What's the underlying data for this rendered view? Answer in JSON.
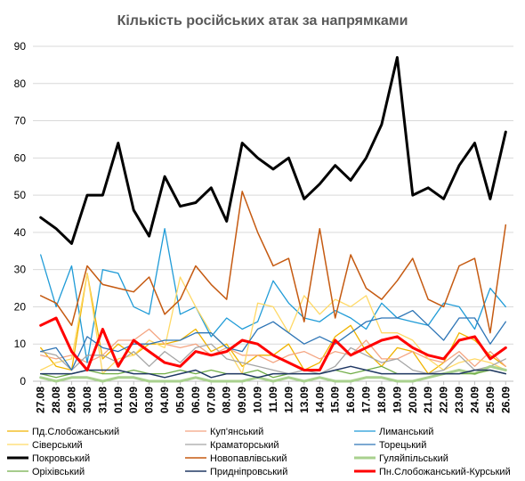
{
  "chart_data": {
    "type": "line",
    "title": "Кількість російських атак за напрямками",
    "xlabel": "",
    "ylabel": "",
    "ylim": [
      0,
      90
    ],
    "yticks": [
      0,
      10,
      20,
      30,
      40,
      50,
      60,
      70,
      80,
      90
    ],
    "grid": "horizontal",
    "legend_position": "bottom",
    "categories": [
      "27.08",
      "28.08",
      "29.08",
      "30.08",
      "31.08",
      "01.09",
      "02.09",
      "03.09",
      "04.09",
      "05.09",
      "06.09",
      "07.09",
      "08.09",
      "09.09",
      "10.09",
      "11.09",
      "12.09",
      "13.09",
      "14.09",
      "15.09",
      "16.09",
      "17.09",
      "18.09",
      "19.09",
      "20.09",
      "21.09",
      "22.09",
      "23.09",
      "24.09",
      "25.09",
      "26.09"
    ],
    "series": [
      {
        "name": "Пд.Слобожанський",
        "color": "#f0b400",
        "width": 1.3,
        "values": [
          9,
          4,
          3,
          29,
          6,
          10,
          7,
          10,
          10,
          11,
          14,
          8,
          10,
          4,
          7,
          7,
          10,
          3,
          5,
          12,
          15,
          8,
          4,
          9,
          8,
          2,
          5,
          13,
          11,
          7,
          4
        ]
      },
      {
        "name": "Куп'янський",
        "color": "#f4a582",
        "width": 1.3,
        "values": [
          7,
          6,
          7,
          5,
          7,
          11,
          11,
          14,
          10,
          9,
          10,
          7,
          9,
          7,
          7,
          5,
          7,
          8,
          6,
          8,
          7,
          11,
          6,
          6,
          8,
          6,
          5,
          8,
          4,
          8,
          4
        ]
      },
      {
        "name": "Лиманський",
        "color": "#1f9bd7",
        "width": 1.3,
        "values": [
          34,
          20,
          31,
          5,
          30,
          29,
          20,
          18,
          41,
          18,
          20,
          12,
          17,
          14,
          16,
          27,
          21,
          17,
          16,
          19,
          17,
          14,
          21,
          17,
          16,
          15,
          21,
          20,
          14,
          25,
          20
        ]
      },
      {
        "name": "Сіверський",
        "color": "#ffd966",
        "width": 1.3,
        "values": [
          3,
          5,
          6,
          29,
          2,
          6,
          7,
          11,
          9,
          28,
          20,
          13,
          9,
          2,
          21,
          20,
          13,
          23,
          18,
          22,
          20,
          23,
          13,
          13,
          11,
          6,
          3,
          5,
          6,
          5,
          3
        ]
      },
      {
        "name": "Краматорський",
        "color": "#a5a5a5",
        "width": 1.3,
        "values": [
          8,
          7,
          3,
          7,
          7,
          5,
          8,
          4,
          8,
          5,
          9,
          10,
          6,
          5,
          4,
          3,
          2,
          3,
          2,
          4,
          9,
          7,
          5,
          6,
          3,
          2,
          3,
          7,
          3,
          4,
          6
        ]
      },
      {
        "name": "Торецький",
        "color": "#2e75b6",
        "width": 1.3,
        "values": [
          8,
          9,
          3,
          12,
          9,
          8,
          10,
          10,
          11,
          11,
          13,
          13,
          9,
          8,
          14,
          16,
          13,
          10,
          12,
          10,
          13,
          16,
          17,
          17,
          19,
          15,
          11,
          17,
          17,
          10,
          16
        ]
      },
      {
        "name": "Покровський",
        "color": "#000000",
        "width": 3,
        "values": [
          44,
          41,
          37,
          50,
          50,
          64,
          46,
          39,
          55,
          47,
          48,
          52,
          43,
          64,
          60,
          57,
          60,
          49,
          53,
          58,
          54,
          60,
          69,
          87,
          50,
          52,
          49,
          58,
          64,
          49,
          67
        ]
      },
      {
        "name": "Новопавлівський",
        "color": "#c55a11",
        "width": 1.5,
        "values": [
          23,
          21,
          15,
          31,
          26,
          25,
          24,
          28,
          18,
          22,
          31,
          26,
          22,
          51,
          40,
          31,
          33,
          16,
          41,
          17,
          34,
          25,
          22,
          27,
          33,
          22,
          20,
          31,
          33,
          13,
          42
        ]
      },
      {
        "name": "Гуляйпільський",
        "color": "#a9d18e",
        "width": 3,
        "values": [
          1,
          0,
          1,
          1,
          0,
          1,
          1,
          0,
          0,
          0,
          1,
          0,
          0,
          0,
          1,
          0,
          1,
          0,
          1,
          0,
          0,
          1,
          1,
          0,
          0,
          1,
          2,
          3,
          2,
          4,
          3
        ]
      },
      {
        "name": "Оріхівський",
        "color": "#70ad47",
        "width": 1.3,
        "values": [
          2,
          1,
          2,
          3,
          2,
          2,
          3,
          2,
          2,
          3,
          2,
          3,
          2,
          2,
          3,
          1,
          2,
          2,
          2,
          3,
          2,
          3,
          4,
          2,
          2,
          2,
          2,
          2,
          2,
          3,
          2
        ]
      },
      {
        "name": "Придніпровський",
        "color": "#203864",
        "width": 1.5,
        "values": [
          2,
          2,
          2,
          3,
          3,
          3,
          2,
          2,
          1,
          2,
          3,
          1,
          2,
          2,
          1,
          2,
          2,
          2,
          2,
          3,
          4,
          3,
          2,
          2,
          2,
          2,
          2,
          2,
          3,
          3,
          2
        ]
      },
      {
        "name": "Пн.Слобожанський-Курський",
        "color": "#ff0000",
        "width": 3,
        "values": [
          15,
          17,
          8,
          3,
          14,
          4,
          11,
          8,
          5,
          4,
          8,
          7,
          8,
          11,
          10,
          7,
          5,
          3,
          3,
          11,
          7,
          9,
          11,
          12,
          9,
          7,
          6,
          11,
          12,
          6,
          9
        ]
      }
    ]
  }
}
